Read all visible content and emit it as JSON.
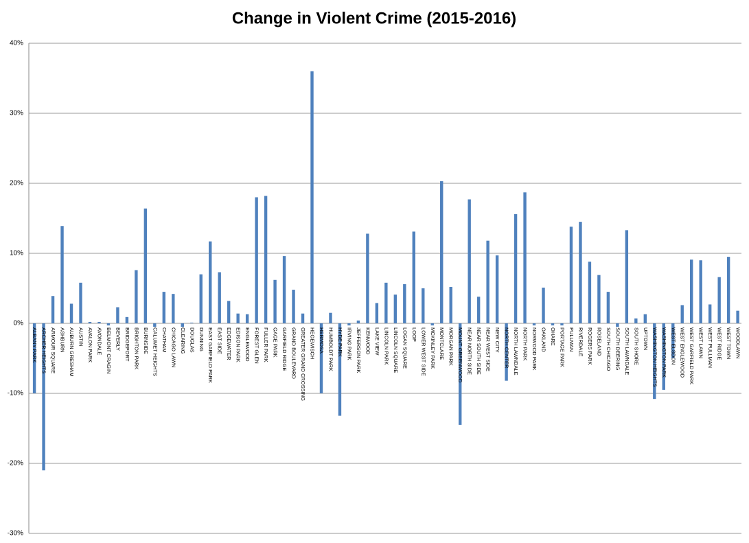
{
  "chart_data": {
    "type": "bar",
    "title": "Change in Violent Crime (2015-2016)",
    "categories": [
      "ALBANY PARK",
      "ARCHER HEIGHTS",
      "ARMOUR SQUARE",
      "ASHBURN",
      "AUBURN GRESHAM",
      "AUSTIN",
      "AVALON PARK",
      "AVONDALE",
      "BELMONT CRAGIN",
      "BEVERLY",
      "BRIDGEPORT",
      "BRIGHTON PARK",
      "BURNSIDE",
      "CALUMET HEIGHTS",
      "CHATHAM",
      "CHICAGO LAWN",
      "CLEARING",
      "DOUGLAS",
      "DUNNING",
      "EAST GARFIELD PARK",
      "EAST SIDE",
      "EDGEWATER",
      "EDISON PARK",
      "ENGLEWOOD",
      "FOREST GLEN",
      "FULLER PARK",
      "GAGE PARK",
      "GARFIELD RIDGE",
      "GRAND BOULEVARD",
      "GREATER GRAND CROSSING",
      "HEGEWISCH",
      "HERMOSA",
      "HUMBOLDT PARK",
      "HYDE PARK",
      "IRVING PARK",
      "JEFFERSON PARK",
      "KENWOOD",
      "LAKE VIEW",
      "LINCOLN PARK",
      "LINCOLN SQUARE",
      "LOGAN SQUARE",
      "LOOP",
      "LOWER WEST SIDE",
      "MCKINLEY PARK",
      "MONTCLARE",
      "MORGAN PARK",
      "MOUNT GREENWOOD",
      "NEAR NORTH SIDE",
      "NEAR SOUTH SIDE",
      "NEAR WEST SIDE",
      "NEW CITY",
      "NORTH CENTER",
      "NORTH LAWNDALE",
      "NORTH PARK",
      "NORWOOD PARK",
      "OAKLAND",
      "OHARE",
      "PORTAGE PARK",
      "PULLMAN",
      "RIVERDALE",
      "ROGERS PARK",
      "ROSELAND",
      "SOUTH CHICAGO",
      "SOUTH DEERING",
      "SOUTH LAWNDALE",
      "SOUTH SHORE",
      "UPTOWN",
      "WASHINGTON HEIGHTS",
      "WASHINGTON PARK",
      "WEST ELSDON",
      "WEST ENGLEWOOD",
      "WEST GARFIELD PARK",
      "WEST LAWN",
      "WEST PULLMAN",
      "WEST RIDGE",
      "WEST TOWN",
      "WOODLAWN"
    ],
    "values": [
      -10,
      -21,
      3.9,
      13.9,
      2.8,
      5.8,
      0.2,
      0.2,
      -0.3,
      2.3,
      0.9,
      7.6,
      16.4,
      -0.5,
      4.5,
      4.2,
      -0.5,
      0.1,
      7,
      11.7,
      7.3,
      3.2,
      1.4,
      1.3,
      18,
      18.2,
      6.2,
      9.6,
      4.8,
      1.4,
      36,
      -10,
      1.5,
      -13.2,
      -0.3,
      0.4,
      12.8,
      2.9,
      5.8,
      4.1,
      5.6,
      13.1,
      5,
      -0.3,
      20.3,
      5.2,
      -14.5,
      17.7,
      3.8,
      11.8,
      9.7,
      -8.2,
      15.6,
      18.7,
      -0.3,
      5.1,
      -0.3,
      -0.3,
      13.8,
      14.5,
      8.8,
      6.9,
      4.5,
      -0.5,
      13.3,
      0.7,
      1.3,
      -10.8,
      -9.5,
      -5,
      2.6,
      9.1,
      9,
      2.7,
      6.6,
      9.5,
      1.8
    ],
    "color": "#4f81bd",
    "ylim": [
      -30,
      40
    ],
    "yticks": [
      {
        "value": -30,
        "label": "-30%"
      },
      {
        "value": -20,
        "label": "-20%"
      },
      {
        "value": -10,
        "label": "-10%"
      },
      {
        "value": 0,
        "label": "0%"
      },
      {
        "value": 10,
        "label": "10%"
      },
      {
        "value": 20,
        "label": "20%"
      },
      {
        "value": 30,
        "label": "30%"
      },
      {
        "value": 40,
        "label": "40%"
      }
    ],
    "grid": true
  }
}
